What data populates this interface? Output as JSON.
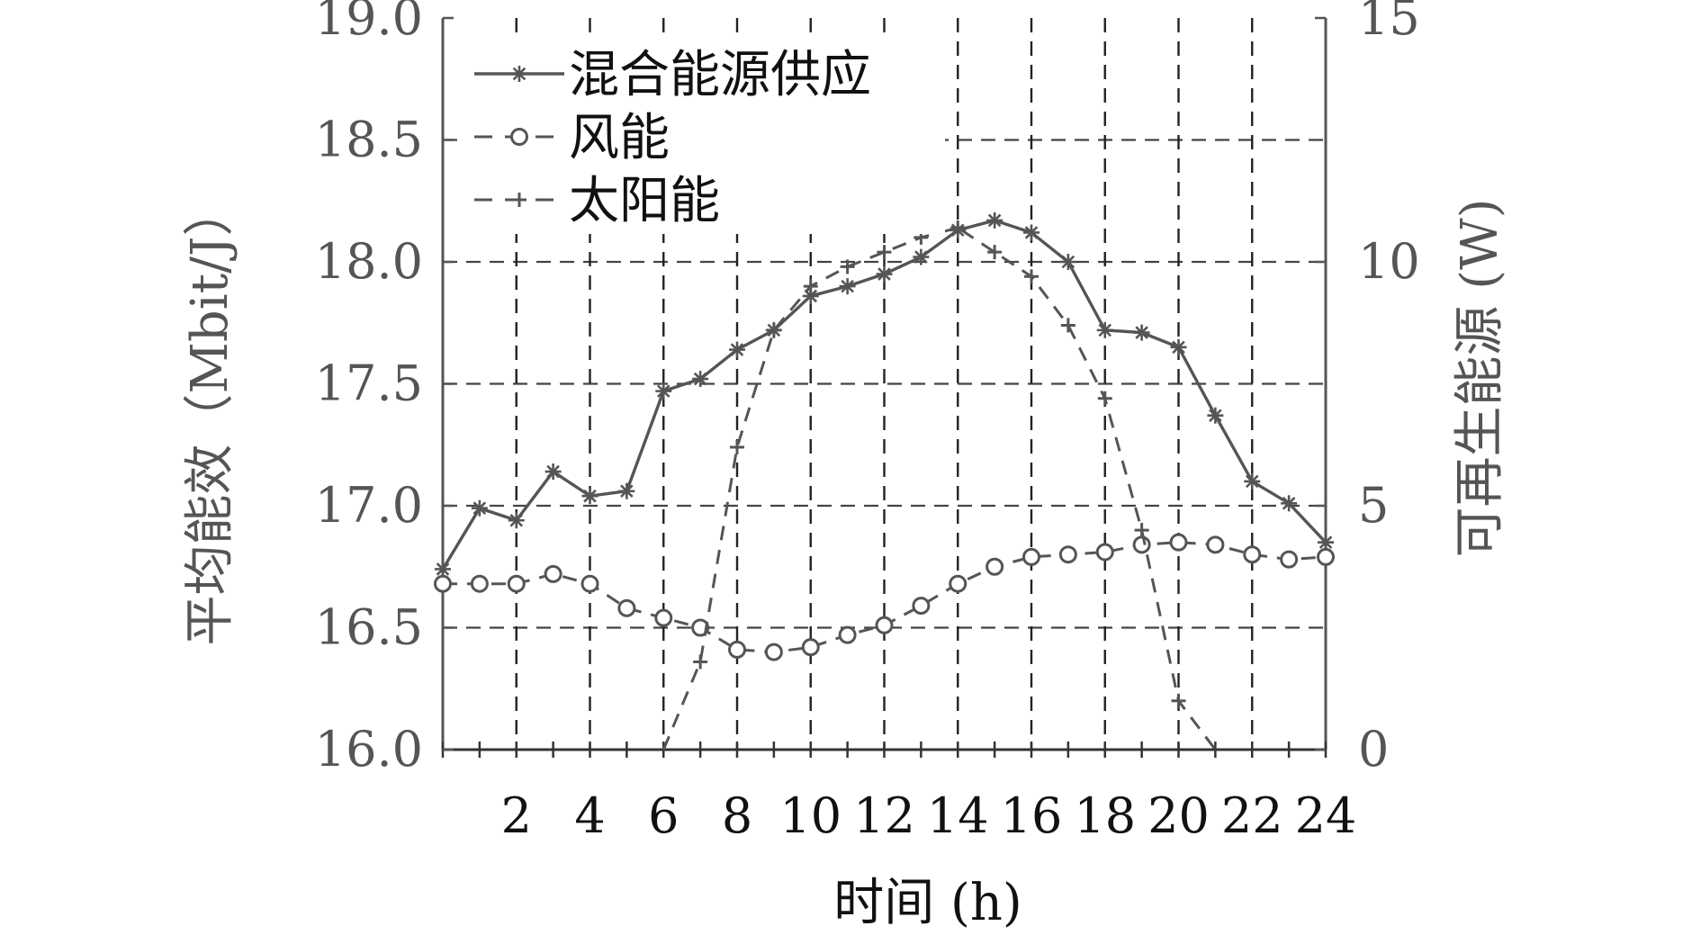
{
  "chart_data": {
    "type": "line",
    "xlabel": "时间 (h)",
    "ylabel_left": "平均能效（Mbit/J）",
    "ylabel_right": "可再生能源 (W)",
    "xlim": [
      0,
      24
    ],
    "x_ticks": [
      2,
      4,
      6,
      8,
      10,
      12,
      14,
      16,
      18,
      20,
      22,
      24
    ],
    "y_left_lim": [
      16.0,
      19.0
    ],
    "y_left_ticks": [
      "16.0",
      "16.5",
      "17.0",
      "17.5",
      "18.0",
      "18.5",
      "19.0"
    ],
    "y_right_lim": [
      0,
      15
    ],
    "y_right_ticks": [
      "0",
      "5",
      "10",
      "15"
    ],
    "grid": true,
    "legend_position": "top-left",
    "colors": {
      "grid": "#444444",
      "line": "#555555",
      "axis": "#555555",
      "text": "#111111"
    },
    "series": [
      {
        "name": "混合能源供应",
        "axis": "left",
        "style": "solid",
        "marker": "asterisk",
        "x": [
          0,
          1,
          2,
          3,
          4,
          5,
          6,
          7,
          8,
          9,
          10,
          11,
          12,
          13,
          14,
          15,
          16,
          17,
          18,
          19,
          20,
          21,
          22,
          23,
          24
        ],
        "y": [
          16.74,
          16.99,
          16.94,
          17.14,
          17.04,
          17.06,
          17.47,
          17.52,
          17.64,
          17.72,
          17.86,
          17.9,
          17.95,
          18.02,
          18.13,
          18.17,
          18.12,
          18.0,
          17.72,
          17.71,
          17.65,
          17.37,
          17.1,
          17.01,
          16.85
        ]
      },
      {
        "name": "风能",
        "axis": "right",
        "style": "dashed",
        "marker": "circle",
        "x": [
          0,
          1,
          2,
          3,
          4,
          5,
          6,
          7,
          8,
          9,
          10,
          11,
          12,
          13,
          14,
          15,
          16,
          17,
          18,
          19,
          20,
          21,
          22,
          23,
          24
        ],
        "y": [
          3.4,
          3.4,
          3.4,
          3.6,
          3.4,
          2.9,
          2.7,
          2.5,
          2.05,
          2.0,
          2.1,
          2.35,
          2.55,
          2.95,
          3.4,
          3.75,
          3.95,
          4.0,
          4.05,
          4.2,
          4.25,
          4.2,
          4.0,
          3.9,
          3.95
        ]
      },
      {
        "name": "太阳能",
        "axis": "right",
        "style": "dashed",
        "marker": "plus",
        "x": [
          6,
          7,
          8,
          9,
          10,
          11,
          12,
          13,
          14,
          15,
          16,
          17,
          18,
          19,
          20,
          21
        ],
        "y": [
          0,
          1.8,
          6.2,
          8.6,
          9.5,
          9.9,
          10.2,
          10.5,
          10.7,
          10.2,
          9.7,
          8.7,
          7.2,
          4.5,
          1.0,
          0
        ]
      }
    ]
  }
}
